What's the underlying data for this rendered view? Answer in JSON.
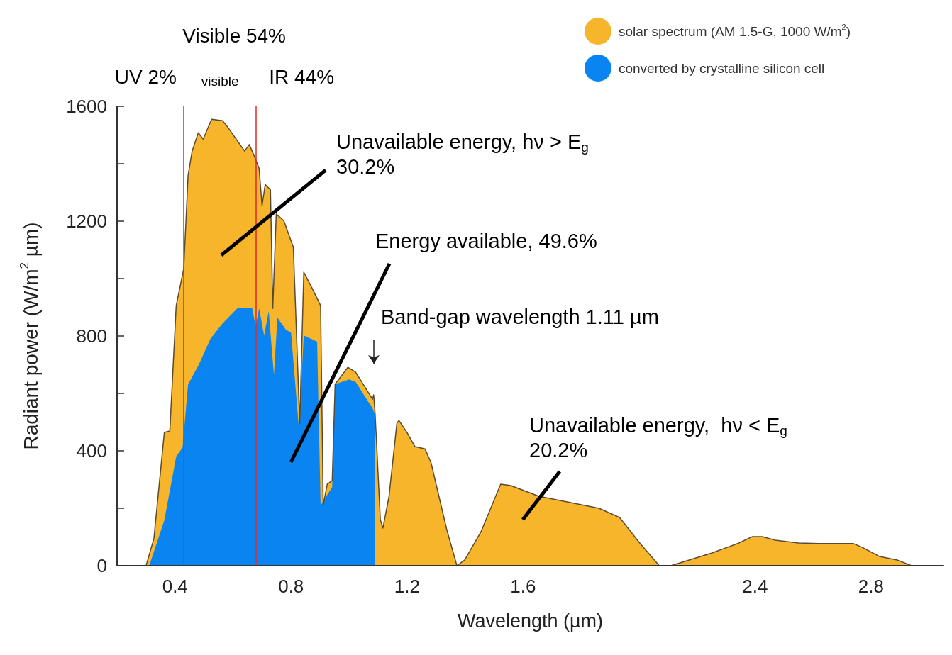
{
  "chart_data": {
    "type": "area",
    "xlabel": "Wavelength (µm)",
    "ylabel": "Radiant power (W/m$^{2}$ µm)",
    "xlim": [
      0.2,
      3.05
    ],
    "xticks": [
      0.4,
      0.8,
      1.2,
      1.6,
      2.4,
      2.8
    ],
    "ylim": [
      0,
      1600
    ],
    "yticks": [
      0,
      {
        "value": 200,
        "label": null
      },
      400,
      {
        "value": 600,
        "label": null
      },
      800,
      {
        "value": 1000,
        "label": null
      },
      1200,
      {
        "value": 1400,
        "label": null
      },
      1600
    ],
    "grid": false,
    "legend": "top right",
    "series": [
      {
        "name": "solar spectrum (AM 1.5-G, 1000 W/m$^{2}$)",
        "color": "#f7b52c",
        "x": [
          0.3,
          0.327,
          0.363,
          0.382,
          0.404,
          0.43,
          0.445,
          0.459,
          0.48,
          0.497,
          0.526,
          0.564,
          0.58,
          0.64,
          0.656,
          0.674,
          0.69,
          0.7,
          0.711,
          0.729,
          0.737,
          0.749,
          0.775,
          0.808,
          0.83,
          0.844,
          0.871,
          0.902,
          0.911,
          0.925,
          0.942,
          0.952,
          0.996,
          1.023,
          1.081,
          1.085,
          1.09,
          1.096,
          1.108,
          1.117,
          1.138,
          1.165,
          1.172,
          1.2,
          1.227,
          1.262,
          1.283,
          1.31,
          1.337,
          1.372,
          1.399,
          1.455,
          1.523,
          1.558,
          1.654,
          1.862,
          1.933,
          2.004,
          2.07,
          2.11,
          2.25,
          2.34,
          2.39,
          2.425,
          2.47,
          2.55,
          2.62,
          2.74,
          2.77,
          2.83,
          2.89,
          2.94
        ],
        "values": [
          0,
          94,
          464,
          469,
          906,
          1035,
          1360,
          1444,
          1508,
          1486,
          1555,
          1550,
          1530,
          1444,
          1467,
          1425,
          1383,
          1254,
          1328,
          1309,
          896,
          1225,
          1202,
          1109,
          496,
          1022,
          970,
          906,
          210,
          284,
          296,
          632,
          691,
          674,
          580,
          595,
          528,
          407,
          160,
          131,
          242,
          496,
          506,
          464,
          415,
          407,
          358,
          242,
          126,
          0,
          20,
          118,
          284,
          279,
          242,
          200,
          168,
          77,
          0,
          0,
          44,
          77,
          101,
          101,
          89,
          79,
          77,
          77,
          64,
          32,
          20,
          0
        ]
      },
      {
        "name": "converted by crystalline silicon cell",
        "color": "#0a84f0",
        "x": [
          0.311,
          0.363,
          0.404,
          0.426,
          0.445,
          0.48,
          0.522,
          0.564,
          0.615,
          0.666,
          0.678,
          0.69,
          0.707,
          0.723,
          0.741,
          0.753,
          0.782,
          0.8,
          0.827,
          0.844,
          0.89,
          0.902,
          0.942,
          0.952,
          1.0,
          1.023,
          1.081,
          1.088,
          1.09
        ],
        "values": [
          0,
          158,
          380,
          412,
          632,
          696,
          790,
          844,
          896,
          896,
          835,
          896,
          802,
          886,
          664,
          864,
          822,
          812,
          480,
          802,
          780,
          210,
          274,
          632,
          649,
          640,
          548,
          530,
          0
        ]
      }
    ],
    "ref_lines": [
      {
        "axis": "x",
        "value": 0.43,
        "label": "UV 2%",
        "color": "#e02a2a"
      },
      {
        "axis": "x",
        "value": 0.68,
        "label": "IR 44%",
        "color": "#e02a2a"
      }
    ],
    "annotations": [
      "visible",
      "Visible 54%",
      "Unavailable energy, hν > E$_{g}$\n30.2%",
      "Energy available, 49.6%",
      "Band-gap wavelength 1.11 µm",
      "Unavailable energy,  hν < E$_{g}$\n20.2%"
    ]
  }
}
